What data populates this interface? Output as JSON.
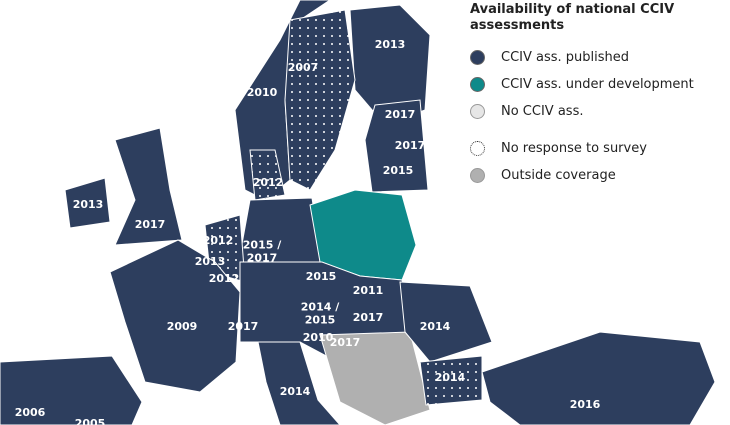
{
  "legend": {
    "title": "Availability of national CCIV assessments",
    "items": [
      "CCIV ass. published",
      "CCIV ass. under development",
      "No CCIV ass.",
      "No response to survey",
      "Outside coverage"
    ]
  },
  "labels": [
    {
      "lines": [
        "2013"
      ]
    },
    {
      "lines": [
        "2007"
      ]
    },
    {
      "lines": [
        "2010"
      ]
    },
    {
      "lines": [
        "2017"
      ]
    },
    {
      "lines": [
        "2017"
      ]
    },
    {
      "lines": [
        "2015"
      ]
    },
    {
      "lines": [
        "2012"
      ]
    },
    {
      "lines": [
        "2013"
      ]
    },
    {
      "lines": [
        "2017"
      ]
    },
    {
      "lines": [
        "2012"
      ]
    },
    {
      "lines": [
        "2013"
      ]
    },
    {
      "lines": [
        "2012"
      ]
    },
    {
      "lines": [
        "2015 /",
        "2017"
      ]
    },
    {
      "lines": [
        "2015"
      ]
    },
    {
      "lines": [
        "2011"
      ]
    },
    {
      "lines": [
        "2009"
      ]
    },
    {
      "lines": [
        "2017"
      ]
    },
    {
      "lines": [
        "2014 /",
        "2015"
      ]
    },
    {
      "lines": [
        "2017"
      ]
    },
    {
      "lines": [
        "2010"
      ]
    },
    {
      "lines": [
        "2017"
      ]
    },
    {
      "lines": [
        "2014"
      ]
    },
    {
      "lines": [
        "2014"
      ]
    },
    {
      "lines": [
        "2014"
      ]
    },
    {
      "lines": [
        "2016"
      ]
    },
    {
      "lines": [
        "2006"
      ]
    },
    {
      "lines": [
        "2005"
      ]
    }
  ]
}
